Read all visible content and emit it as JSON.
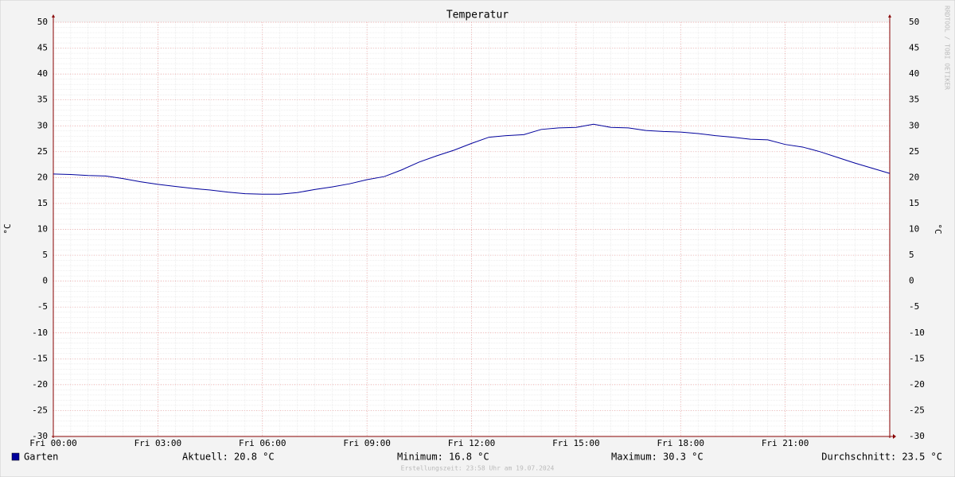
{
  "chart_data": {
    "type": "line",
    "title": "Temperatur",
    "ylabel": "°C",
    "y2label": "°C",
    "watermark": "RRDTOOL / TOBI OETIKER",
    "x": [
      0,
      0.5,
      1,
      1.5,
      2,
      2.5,
      3,
      3.5,
      4,
      4.5,
      5,
      5.5,
      6,
      6.5,
      7,
      7.5,
      8,
      8.5,
      9,
      9.5,
      10,
      10.5,
      11,
      11.5,
      12,
      12.5,
      13,
      13.5,
      14,
      14.5,
      15,
      15.5,
      16,
      16.5,
      17,
      17.5,
      18,
      18.5,
      19,
      19.5,
      20,
      20.5,
      21,
      21.5,
      22,
      22.5,
      23,
      23.5,
      24
    ],
    "series": [
      {
        "name": "Garten",
        "color": "#00009c",
        "values": [
          20.7,
          20.6,
          20.4,
          20.3,
          19.8,
          19.2,
          18.7,
          18.3,
          17.9,
          17.6,
          17.2,
          16.9,
          16.8,
          16.8,
          17.1,
          17.7,
          18.2,
          18.8,
          19.6,
          20.2,
          21.5,
          23.0,
          24.2,
          25.3,
          26.6,
          27.8,
          28.1,
          28.3,
          29.3,
          29.6,
          29.7,
          30.3,
          29.7,
          29.6,
          29.1,
          28.9,
          28.8,
          28.5,
          28.1,
          27.8,
          27.4,
          27.3,
          26.4,
          25.9,
          25.0,
          23.9,
          22.8,
          21.8,
          20.8
        ]
      }
    ],
    "xlim": [
      0,
      24
    ],
    "xticks": [
      {
        "value": 0,
        "label": "Fri 00:00"
      },
      {
        "value": 3,
        "label": "Fri 03:00"
      },
      {
        "value": 6,
        "label": "Fri 06:00"
      },
      {
        "value": 9,
        "label": "Fri 09:00"
      },
      {
        "value": 12,
        "label": "Fri 12:00"
      },
      {
        "value": 15,
        "label": "Fri 15:00"
      },
      {
        "value": 18,
        "label": "Fri 18:00"
      },
      {
        "value": 21,
        "label": "Fri 21:00"
      }
    ],
    "ylim": [
      -30,
      50
    ],
    "yticks": [
      -30,
      -25,
      -20,
      -15,
      -10,
      -5,
      0,
      5,
      10,
      15,
      20,
      25,
      30,
      35,
      40,
      45,
      50
    ],
    "y2lim": [
      -30,
      50
    ],
    "y2ticks": [
      -30,
      -25,
      -20,
      -15,
      -10,
      -5,
      0,
      5,
      10,
      15,
      20,
      25,
      30,
      35,
      40,
      45,
      50
    ],
    "grid": true,
    "stats": [
      "Aktuell: 20.8 °C",
      "Minimum: 16.8 °C",
      "Maximum: 30.3 °C",
      "Durchschnitt: 23.5 °C"
    ],
    "footer": "Erstellungszeit: 23:58 Uhr am 19.07.2024"
  }
}
